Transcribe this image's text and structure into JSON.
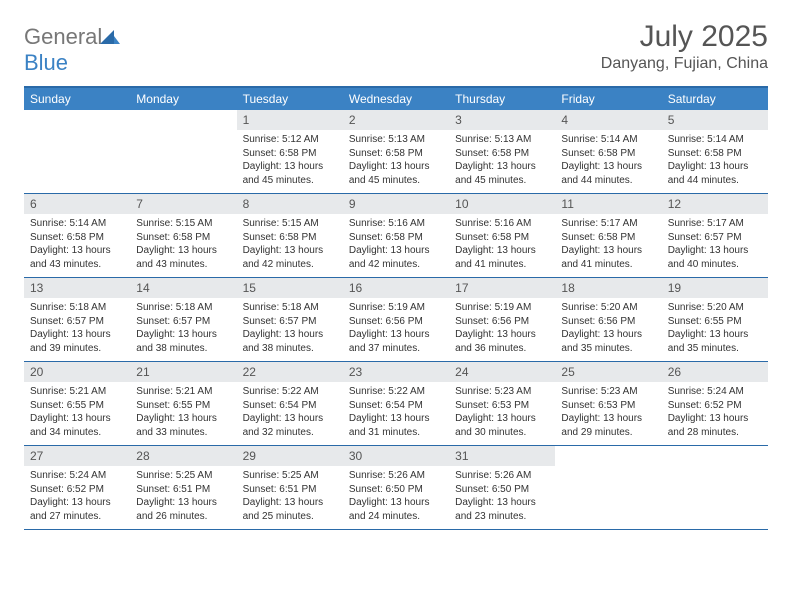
{
  "brand": {
    "part1": "General",
    "part2": "Blue"
  },
  "title": "July 2025",
  "location": "Danyang, Fujian, China",
  "colors": {
    "header_bg": "#3b82c4",
    "border": "#2a6aa8",
    "daynum_bg": "#e7e9eb",
    "text": "#333333",
    "muted": "#555555"
  },
  "dayNames": [
    "Sunday",
    "Monday",
    "Tuesday",
    "Wednesday",
    "Thursday",
    "Friday",
    "Saturday"
  ],
  "weeks": [
    [
      null,
      null,
      {
        "n": "1",
        "sr": "Sunrise: 5:12 AM",
        "ss": "Sunset: 6:58 PM",
        "d1": "Daylight: 13 hours",
        "d2": "and 45 minutes."
      },
      {
        "n": "2",
        "sr": "Sunrise: 5:13 AM",
        "ss": "Sunset: 6:58 PM",
        "d1": "Daylight: 13 hours",
        "d2": "and 45 minutes."
      },
      {
        "n": "3",
        "sr": "Sunrise: 5:13 AM",
        "ss": "Sunset: 6:58 PM",
        "d1": "Daylight: 13 hours",
        "d2": "and 45 minutes."
      },
      {
        "n": "4",
        "sr": "Sunrise: 5:14 AM",
        "ss": "Sunset: 6:58 PM",
        "d1": "Daylight: 13 hours",
        "d2": "and 44 minutes."
      },
      {
        "n": "5",
        "sr": "Sunrise: 5:14 AM",
        "ss": "Sunset: 6:58 PM",
        "d1": "Daylight: 13 hours",
        "d2": "and 44 minutes."
      }
    ],
    [
      {
        "n": "6",
        "sr": "Sunrise: 5:14 AM",
        "ss": "Sunset: 6:58 PM",
        "d1": "Daylight: 13 hours",
        "d2": "and 43 minutes."
      },
      {
        "n": "7",
        "sr": "Sunrise: 5:15 AM",
        "ss": "Sunset: 6:58 PM",
        "d1": "Daylight: 13 hours",
        "d2": "and 43 minutes."
      },
      {
        "n": "8",
        "sr": "Sunrise: 5:15 AM",
        "ss": "Sunset: 6:58 PM",
        "d1": "Daylight: 13 hours",
        "d2": "and 42 minutes."
      },
      {
        "n": "9",
        "sr": "Sunrise: 5:16 AM",
        "ss": "Sunset: 6:58 PM",
        "d1": "Daylight: 13 hours",
        "d2": "and 42 minutes."
      },
      {
        "n": "10",
        "sr": "Sunrise: 5:16 AM",
        "ss": "Sunset: 6:58 PM",
        "d1": "Daylight: 13 hours",
        "d2": "and 41 minutes."
      },
      {
        "n": "11",
        "sr": "Sunrise: 5:17 AM",
        "ss": "Sunset: 6:58 PM",
        "d1": "Daylight: 13 hours",
        "d2": "and 41 minutes."
      },
      {
        "n": "12",
        "sr": "Sunrise: 5:17 AM",
        "ss": "Sunset: 6:57 PM",
        "d1": "Daylight: 13 hours",
        "d2": "and 40 minutes."
      }
    ],
    [
      {
        "n": "13",
        "sr": "Sunrise: 5:18 AM",
        "ss": "Sunset: 6:57 PM",
        "d1": "Daylight: 13 hours",
        "d2": "and 39 minutes."
      },
      {
        "n": "14",
        "sr": "Sunrise: 5:18 AM",
        "ss": "Sunset: 6:57 PM",
        "d1": "Daylight: 13 hours",
        "d2": "and 38 minutes."
      },
      {
        "n": "15",
        "sr": "Sunrise: 5:18 AM",
        "ss": "Sunset: 6:57 PM",
        "d1": "Daylight: 13 hours",
        "d2": "and 38 minutes."
      },
      {
        "n": "16",
        "sr": "Sunrise: 5:19 AM",
        "ss": "Sunset: 6:56 PM",
        "d1": "Daylight: 13 hours",
        "d2": "and 37 minutes."
      },
      {
        "n": "17",
        "sr": "Sunrise: 5:19 AM",
        "ss": "Sunset: 6:56 PM",
        "d1": "Daylight: 13 hours",
        "d2": "and 36 minutes."
      },
      {
        "n": "18",
        "sr": "Sunrise: 5:20 AM",
        "ss": "Sunset: 6:56 PM",
        "d1": "Daylight: 13 hours",
        "d2": "and 35 minutes."
      },
      {
        "n": "19",
        "sr": "Sunrise: 5:20 AM",
        "ss": "Sunset: 6:55 PM",
        "d1": "Daylight: 13 hours",
        "d2": "and 35 minutes."
      }
    ],
    [
      {
        "n": "20",
        "sr": "Sunrise: 5:21 AM",
        "ss": "Sunset: 6:55 PM",
        "d1": "Daylight: 13 hours",
        "d2": "and 34 minutes."
      },
      {
        "n": "21",
        "sr": "Sunrise: 5:21 AM",
        "ss": "Sunset: 6:55 PM",
        "d1": "Daylight: 13 hours",
        "d2": "and 33 minutes."
      },
      {
        "n": "22",
        "sr": "Sunrise: 5:22 AM",
        "ss": "Sunset: 6:54 PM",
        "d1": "Daylight: 13 hours",
        "d2": "and 32 minutes."
      },
      {
        "n": "23",
        "sr": "Sunrise: 5:22 AM",
        "ss": "Sunset: 6:54 PM",
        "d1": "Daylight: 13 hours",
        "d2": "and 31 minutes."
      },
      {
        "n": "24",
        "sr": "Sunrise: 5:23 AM",
        "ss": "Sunset: 6:53 PM",
        "d1": "Daylight: 13 hours",
        "d2": "and 30 minutes."
      },
      {
        "n": "25",
        "sr": "Sunrise: 5:23 AM",
        "ss": "Sunset: 6:53 PM",
        "d1": "Daylight: 13 hours",
        "d2": "and 29 minutes."
      },
      {
        "n": "26",
        "sr": "Sunrise: 5:24 AM",
        "ss": "Sunset: 6:52 PM",
        "d1": "Daylight: 13 hours",
        "d2": "and 28 minutes."
      }
    ],
    [
      {
        "n": "27",
        "sr": "Sunrise: 5:24 AM",
        "ss": "Sunset: 6:52 PM",
        "d1": "Daylight: 13 hours",
        "d2": "and 27 minutes."
      },
      {
        "n": "28",
        "sr": "Sunrise: 5:25 AM",
        "ss": "Sunset: 6:51 PM",
        "d1": "Daylight: 13 hours",
        "d2": "and 26 minutes."
      },
      {
        "n": "29",
        "sr": "Sunrise: 5:25 AM",
        "ss": "Sunset: 6:51 PM",
        "d1": "Daylight: 13 hours",
        "d2": "and 25 minutes."
      },
      {
        "n": "30",
        "sr": "Sunrise: 5:26 AM",
        "ss": "Sunset: 6:50 PM",
        "d1": "Daylight: 13 hours",
        "d2": "and 24 minutes."
      },
      {
        "n": "31",
        "sr": "Sunrise: 5:26 AM",
        "ss": "Sunset: 6:50 PM",
        "d1": "Daylight: 13 hours",
        "d2": "and 23 minutes."
      },
      null,
      null
    ]
  ]
}
